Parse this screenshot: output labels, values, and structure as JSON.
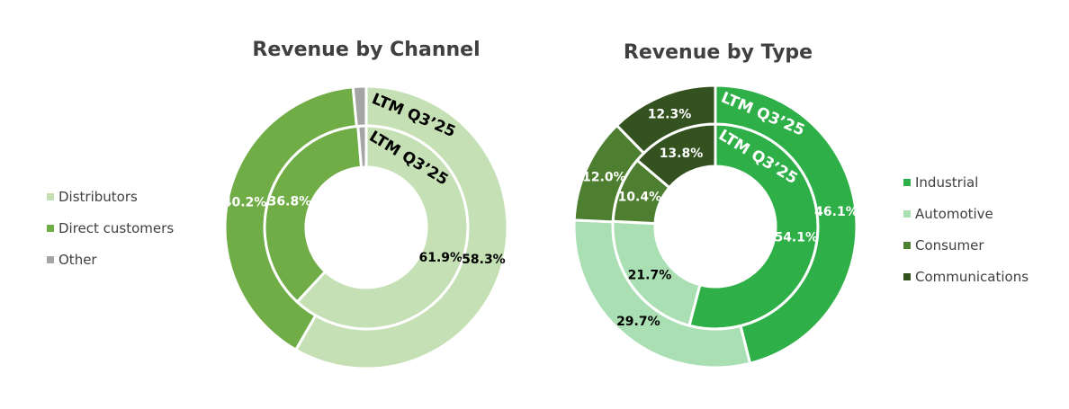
{
  "chart_data": [
    {
      "type": "donut",
      "title": "Revenue by Channel",
      "legend_position": "left",
      "categories": [
        "Distributors",
        "Direct customers",
        "Other"
      ],
      "colors": [
        "#c5e0b4",
        "#70ad47",
        "#a5a5a5"
      ],
      "series": [
        {
          "name": "inner",
          "values": [
            61.9,
            36.8,
            1.3
          ],
          "labels": [
            "61.9%",
            "36.8%",
            ""
          ],
          "label_colors": [
            "#000000",
            "#ffffff",
            "#000000"
          ],
          "ring_label": "LTM Q3’25",
          "ring_label_color": "#000000"
        },
        {
          "name": "outer",
          "values": [
            58.3,
            40.2,
            1.5
          ],
          "labels": [
            "58.3%",
            "40.2%",
            ""
          ],
          "label_colors": [
            "#000000",
            "#ffffff",
            "#000000"
          ],
          "ring_label": "LTM Q3’25",
          "ring_label_color": "#000000"
        }
      ]
    },
    {
      "type": "donut",
      "title": "Revenue by Type",
      "legend_position": "right",
      "categories": [
        "Industrial",
        "Automotive",
        "Consumer",
        "Communications"
      ],
      "colors": [
        "#2eaf47",
        "#a9dfb2",
        "#4e7f30",
        "#34521f"
      ],
      "series": [
        {
          "name": "inner",
          "values": [
            54.1,
            21.7,
            10.4,
            13.8
          ],
          "labels": [
            "54.1%",
            "21.7%",
            "10.4%",
            "13.8%"
          ],
          "label_colors": [
            "#ffffff",
            "#000000",
            "#ffffff",
            "#ffffff"
          ],
          "ring_label": "LTM Q3’25",
          "ring_label_color": "#ffffff"
        },
        {
          "name": "outer",
          "values": [
            46.1,
            29.7,
            12.0,
            12.3
          ],
          "labels": [
            "46.1%",
            "29.7%",
            "12.0%",
            "12.3%"
          ],
          "label_colors": [
            "#ffffff",
            "#000000",
            "#ffffff",
            "#ffffff"
          ],
          "ring_label": "LTM Q3’25",
          "ring_label_color": "#ffffff"
        }
      ]
    }
  ]
}
